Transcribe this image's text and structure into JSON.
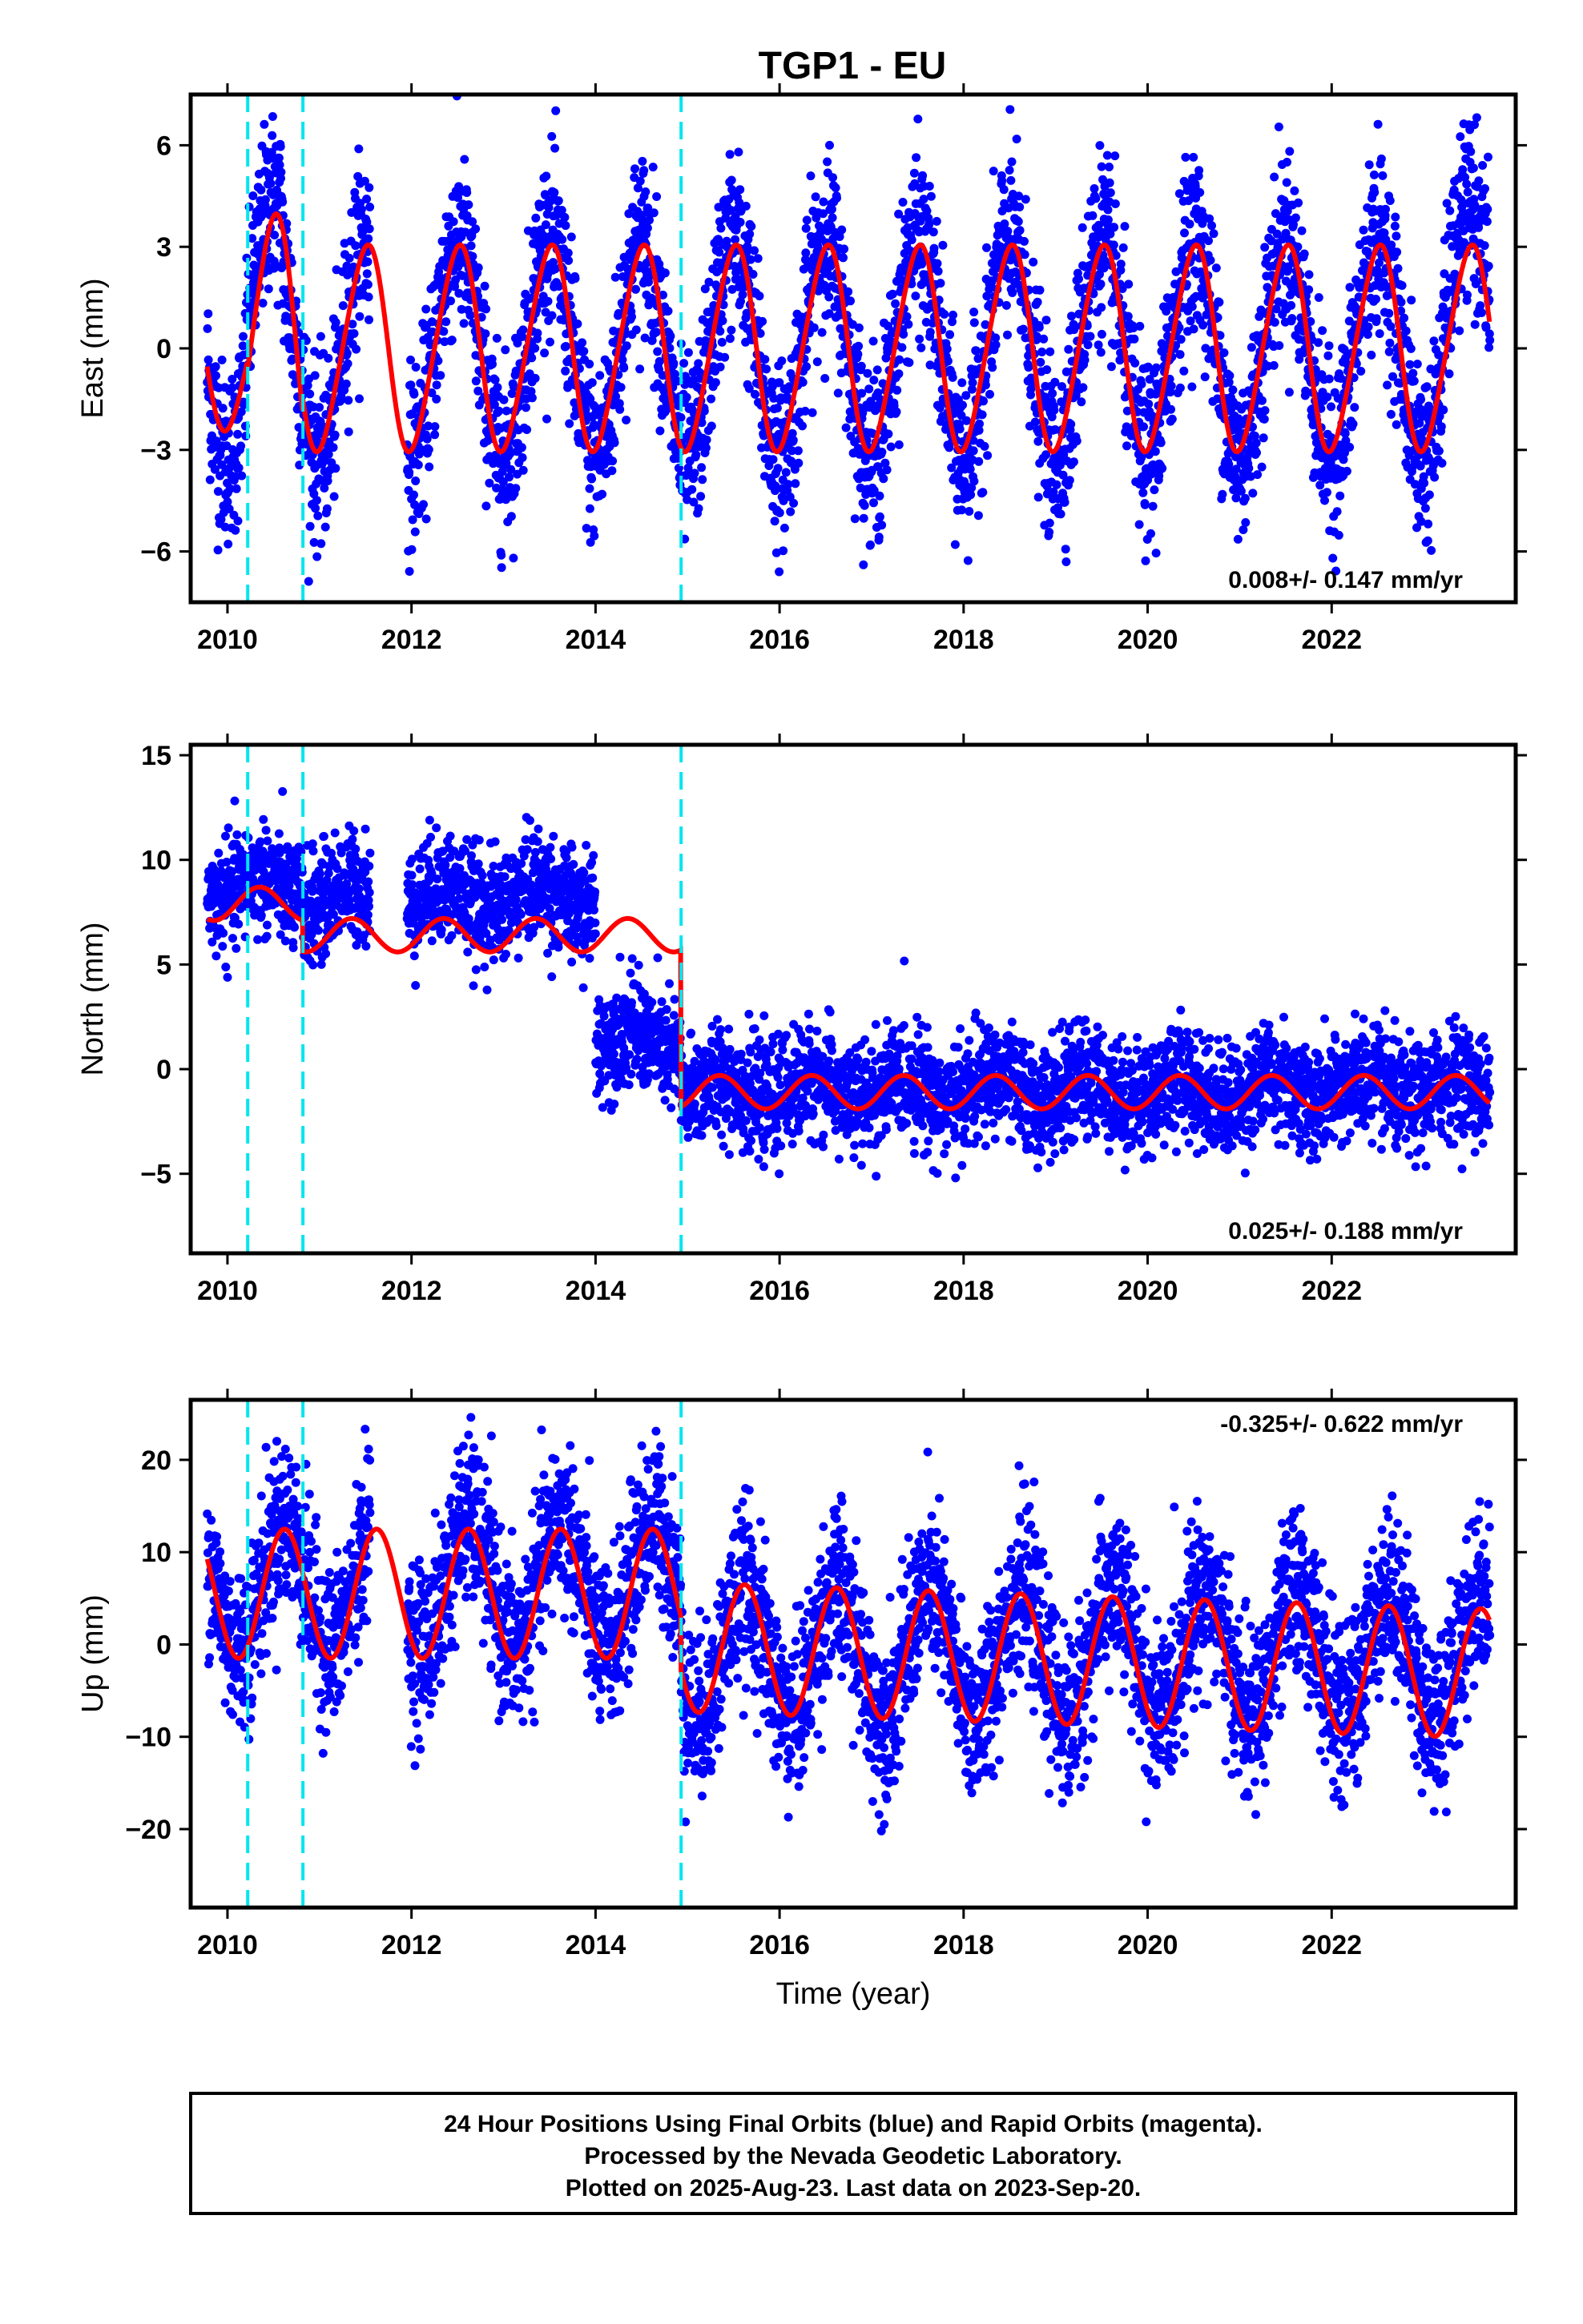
{
  "title": "TGP1 - EU",
  "footer": {
    "lines": [
      "24 Hour Positions Using Final Orbits (blue) and Rapid Orbits (magenta).",
      "Processed by the Nevada Geodetic Laboratory.",
      "Plotted on 2025-Aug-23. Last data on 2023-Sep-20."
    ]
  },
  "colors": {
    "data_points": "#0000ff",
    "model_line": "#ff0000",
    "event_lines": "#00e5ee",
    "frame": "#000000"
  },
  "chart_data": [
    {
      "type": "scatter",
      "panel": "east",
      "ylabel": "East (mm)",
      "xlabel": "",
      "xlim": [
        2009.6,
        2024.0
      ],
      "ylim": [
        -7.5,
        7.5
      ],
      "xticks": [
        2010,
        2012,
        2014,
        2016,
        2018,
        2020,
        2022
      ],
      "yticks": [
        -6,
        -3,
        0,
        3,
        6
      ],
      "ytick_labels": [
        "−6",
        "−3",
        "0",
        "3",
        "6"
      ],
      "rate_text": "0.008+/- 0.147 mm/yr",
      "rate_position": "bottom-right",
      "event_lines": [
        2010.22,
        2010.82,
        2014.93
      ],
      "data_range": [
        2009.78,
        2023.72
      ],
      "series": [
        {
          "name": "",
          "kind": "points",
          "seasonal_amplitude": 3.0,
          "scatter_mm": 1.3,
          "offsets": []
        },
        {
          "name": "",
          "kind": "model",
          "offset": 0.0,
          "trend": 0.008,
          "annual_amp": 3.0,
          "annual_phase": 0.25,
          "semi_amp": 0.3,
          "steps": []
        }
      ]
    },
    {
      "type": "scatter",
      "panel": "north",
      "ylabel": "North (mm)",
      "xlabel": "",
      "xlim": [
        2009.6,
        2024.0
      ],
      "ylim": [
        -8.8,
        15.5
      ],
      "xticks": [
        2010,
        2012,
        2014,
        2016,
        2018,
        2020,
        2022
      ],
      "yticks": [
        -5,
        0,
        5,
        10,
        15
      ],
      "ytick_labels": [
        "−5",
        "0",
        "5",
        "10",
        "15"
      ],
      "rate_text": "0.025+/- 0.188 mm/yr",
      "rate_position": "bottom-right",
      "event_lines": [
        2010.22,
        2010.82,
        2014.93
      ],
      "data_range": [
        2009.78,
        2023.72
      ],
      "series": [
        {
          "name": "",
          "kind": "points",
          "scatter_mm": 1.3,
          "segments": [
            {
              "from": 2009.78,
              "to": 2010.82,
              "level": 8.6
            },
            {
              "from": 2010.82,
              "to": 2014.0,
              "level": 8.2
            },
            {
              "from": 2014.0,
              "to": 2014.93,
              "level": 1.3
            },
            {
              "from": 2014.93,
              "to": 2023.72,
              "level": -1.0
            }
          ]
        },
        {
          "name": "",
          "kind": "model",
          "annual_amp": 0.8,
          "annual_phase": 0.1,
          "segments": [
            {
              "from": 2009.78,
              "to": 2010.82,
              "level": 7.9
            },
            {
              "from": 2010.82,
              "to": 2014.93,
              "level": 6.4
            },
            {
              "from": 2014.93,
              "to": 2023.72,
              "level": -1.1
            }
          ]
        }
      ]
    },
    {
      "type": "scatter",
      "panel": "up",
      "ylabel": "Up (mm)",
      "xlabel": "Time (year)",
      "xlim": [
        2009.6,
        2024.0
      ],
      "ylim": [
        -28.5,
        26.5
      ],
      "xticks": [
        2010,
        2012,
        2014,
        2016,
        2018,
        2020,
        2022
      ],
      "yticks": [
        -20,
        -10,
        0,
        10,
        20
      ],
      "ytick_labels": [
        "−20",
        "−10",
        "0",
        "10",
        "20"
      ],
      "rate_text": "-0.325+/- 0.622 mm/yr",
      "rate_position": "top-right",
      "event_lines": [
        2010.22,
        2010.82,
        2014.93
      ],
      "data_range": [
        2009.78,
        2023.72
      ],
      "series": [
        {
          "name": "",
          "kind": "points",
          "scatter_mm": 4.5,
          "segments": [
            {
              "from": 2009.78,
              "to": 2014.93,
              "level": 6.5,
              "amp": 7.0
            },
            {
              "from": 2014.93,
              "to": 2023.72,
              "level": -1.0,
              "amp": 7.0
            }
          ]
        },
        {
          "name": "",
          "kind": "model",
          "annual_phase": 0.62,
          "segments": [
            {
              "from": 2009.78,
              "to": 2014.93,
              "level": 5.5,
              "amp": 7.0,
              "trend": 0.0
            },
            {
              "from": 2014.93,
              "to": 2023.72,
              "level": -0.3,
              "amp": 7.0,
              "trend": -0.325
            }
          ]
        }
      ]
    }
  ]
}
